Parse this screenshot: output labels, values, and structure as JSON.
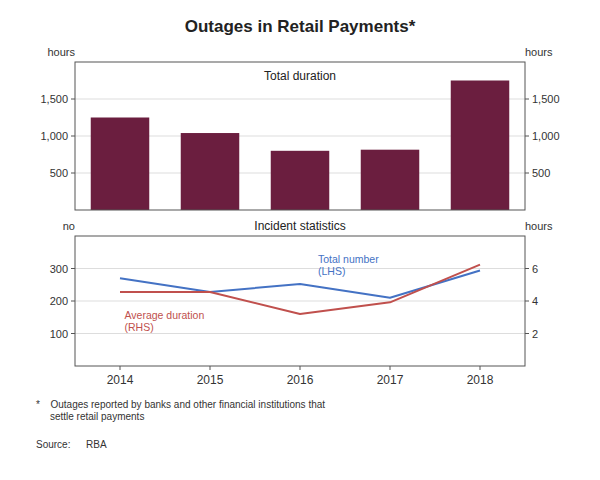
{
  "chart_data": [
    {
      "type": "bar",
      "title": "Outages in Retail Payments*",
      "subtitle": "Total duration",
      "categories": [
        2014,
        2015,
        2016,
        2017,
        2018
      ],
      "values": [
        1250,
        1040,
        800,
        815,
        1750
      ],
      "color": "#6B1E3F",
      "ylabel": "hours",
      "ylim": [
        0,
        2000
      ],
      "yticks": [
        500,
        {
          "value": 1000,
          "label": "1,000"
        },
        {
          "value": 1500,
          "label": "1,500"
        }
      ],
      "y2label": "hours",
      "y2lim": [
        0,
        2000
      ],
      "y2ticks": [
        500,
        {
          "value": 1000,
          "label": "1,000"
        },
        {
          "value": 1500,
          "label": "1,500"
        }
      ],
      "grid": true,
      "tick_labels": "y",
      "footnote": "*   Outages reported by banks and other financial institutions that\n     settle retail payments",
      "source": "Source:   RBA"
    },
    {
      "type": "line",
      "subtitle": "Incident statistics",
      "categories": [
        2014,
        2015,
        2016,
        2017,
        2018
      ],
      "series": [
        {
          "name": "Total number\n(LHS)",
          "color": "#4472C4",
          "values": [
            270,
            228,
            252,
            210,
            294
          ]
        },
        {
          "name": "Average duration\n(RHS)",
          "color": "#C0504D",
          "values": [
            4.55,
            4.55,
            3.2,
            3.92,
            6.24
          ],
          "axis": "y2"
        }
      ],
      "ylabel": "no",
      "ylim": [
        0,
        400
      ],
      "yticks": [
        100,
        200,
        300
      ],
      "y2label": "hours",
      "y2lim": [
        0,
        8
      ],
      "y2ticks": [
        2,
        4,
        6
      ],
      "grid": true
    }
  ]
}
